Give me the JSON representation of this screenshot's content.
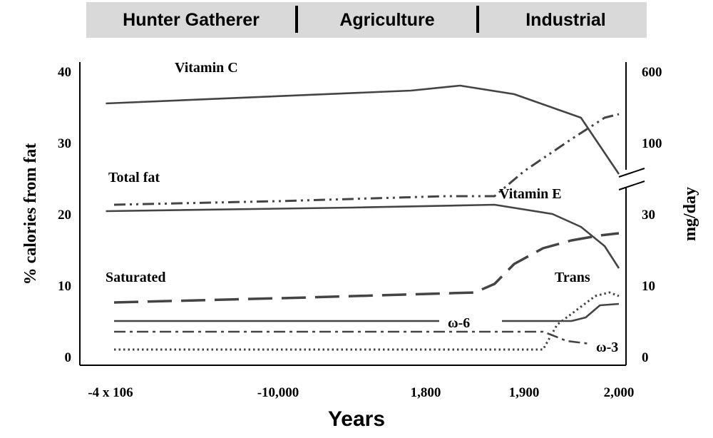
{
  "eras": [
    {
      "label": "Hunter Gatherer"
    },
    {
      "label": "Agriculture"
    },
    {
      "label": "Industrial"
    }
  ],
  "chart_data": {
    "type": "line",
    "title": "",
    "xlabel": "Years",
    "ylabel": "% calories from fat",
    "ylabel_right": "mg/day",
    "x_ticks": [
      "-4 x 106",
      "-10,000",
      "1,800",
      "1,900",
      "2,000"
    ],
    "y_ticks": [
      "0",
      "10",
      "20",
      "30",
      "40"
    ],
    "ylim": [
      0,
      40
    ],
    "y2_ticks": [
      "0",
      "10",
      "30",
      "100",
      "600"
    ],
    "grid": false,
    "legend": "none",
    "series": [
      {
        "name": "Vitamin C",
        "label": "Vitamin C",
        "axis": "right",
        "style": "solid",
        "x": [
          -0.05,
          1.9,
          2.35,
          2.9,
          3.6,
          4.0
        ],
        "y": [
          35.5,
          37.3,
          38.0,
          36.8,
          33.5,
          25.6
        ]
      },
      {
        "name": "Total fat",
        "label": "Total fat",
        "axis": "left",
        "style": "dash-dot-dot",
        "x": [
          0,
          1.0,
          2.2,
          2.7,
          3.0,
          3.5,
          3.85,
          4.0
        ],
        "y": [
          21.3,
          21.8,
          22.5,
          22.5,
          26.0,
          30.5,
          33.5,
          34.0
        ]
      },
      {
        "name": "Vitamin E",
        "label": "Vitamin E",
        "axis": "right",
        "style": "solid",
        "x": [
          -0.05,
          1.5,
          2.7,
          3.3,
          3.6,
          3.85,
          4.0
        ],
        "y": [
          20.4,
          20.9,
          21.3,
          20.0,
          18.2,
          15.5,
          12.4
        ]
      },
      {
        "name": "Saturated",
        "label": "Saturated",
        "axis": "left",
        "style": "long-dash",
        "x": [
          0,
          1.2,
          2.5,
          2.7,
          2.9,
          3.2,
          3.5,
          3.8,
          4.0
        ],
        "y": [
          7.6,
          8.3,
          9.0,
          10.2,
          13.0,
          15.2,
          16.3,
          17.0,
          17.3
        ]
      },
      {
        "name": "ω-6",
        "label": "ω-6",
        "axis": "left",
        "style": "solid-gapped",
        "x": [
          0,
          2.7,
          3.0,
          3.5,
          3.65,
          3.8,
          4.0
        ],
        "y": [
          5.0,
          5.0,
          5.0,
          5.0,
          5.5,
          7.2,
          7.4
        ]
      },
      {
        "name": "ω-3",
        "label": "ω-3",
        "axis": "left",
        "style": "dash-dot",
        "x": [
          0,
          2.7,
          3.2,
          3.3,
          3.45,
          3.7
        ],
        "y": [
          3.5,
          3.5,
          3.5,
          3.0,
          2.2,
          1.8
        ]
      },
      {
        "name": "Trans",
        "label": "Trans",
        "axis": "left",
        "style": "dotted",
        "x": [
          0,
          2.7,
          3.2,
          3.35,
          3.6,
          3.75,
          3.9,
          4.0
        ],
        "y": [
          1.0,
          1.0,
          1.0,
          4.5,
          7.0,
          8.5,
          9.0,
          8.5
        ]
      }
    ]
  }
}
